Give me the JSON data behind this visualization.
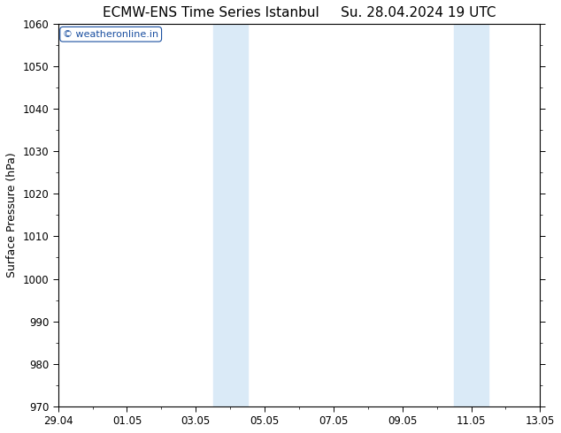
{
  "title_left": "ECMW-ENS Time Series Istanbul",
  "title_right": "Su. 28.04.2024 19 UTC",
  "ylabel": "Surface Pressure (hPa)",
  "ylim": [
    970,
    1060
  ],
  "yticks": [
    970,
    980,
    990,
    1000,
    1010,
    1020,
    1030,
    1040,
    1050,
    1060
  ],
  "xlabel_ticks": [
    "29.04",
    "01.05",
    "03.05",
    "05.05",
    "07.05",
    "09.05",
    "11.05",
    "13.05"
  ],
  "x_tick_positions": [
    0,
    2,
    4,
    6,
    8,
    10,
    12,
    14
  ],
  "x_total_days": 14,
  "shaded_bands": [
    {
      "x_start": 4.5,
      "x_end": 5.5
    },
    {
      "x_start": 11.5,
      "x_end": 12.5
    }
  ],
  "shaded_color": "#daeaf7",
  "background_color": "#ffffff",
  "plot_bg_color": "#ffffff",
  "watermark_text": "© weatheronline.in",
  "watermark_color": "#1a4fa0",
  "title_fontsize": 11,
  "axis_label_fontsize": 9,
  "tick_fontsize": 8.5,
  "watermark_fontsize": 8
}
